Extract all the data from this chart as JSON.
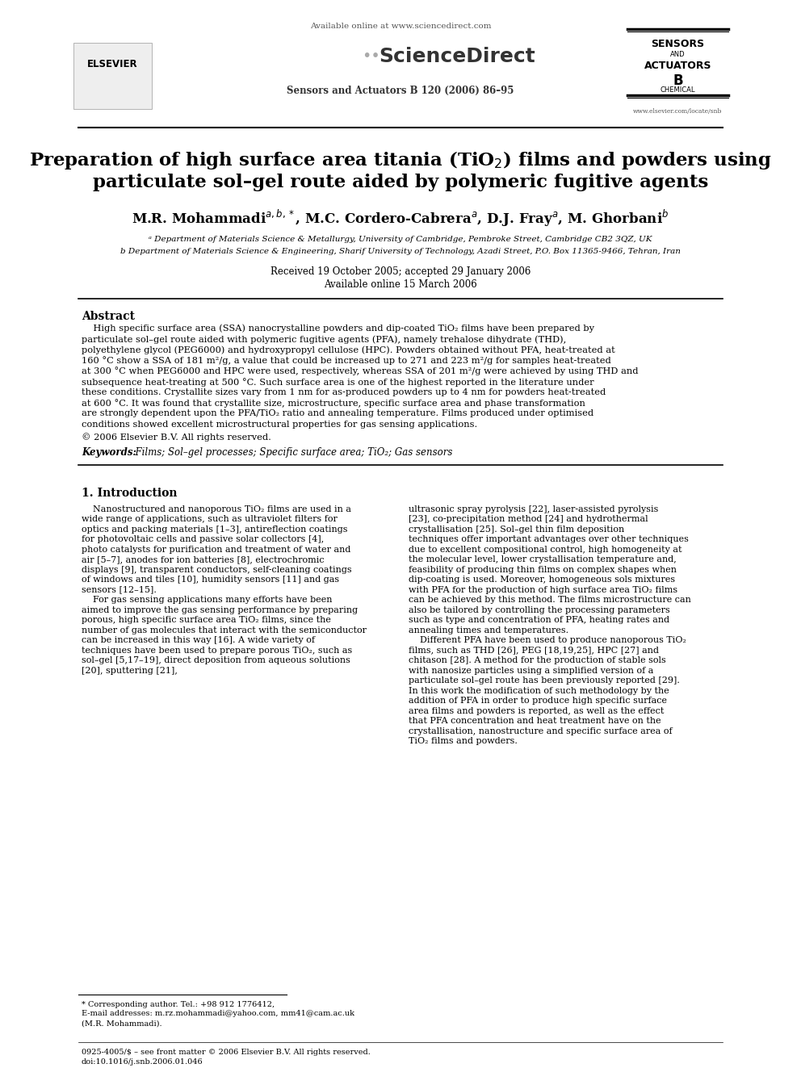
{
  "page_bg": "#ffffff",
  "header_available_online": "Available online at www.sciencedirect.com",
  "journal_info": "Sensors and Actuators B 120 (2006) 86–95",
  "title_line1": "Preparation of high surface area titania (TiO$_2$) films and powders using",
  "title_line2": "particulate sol–gel route aided by polymeric fugitive agents",
  "authors_line": "M.R. Mohammadi$^{a,b,*}$, M.C. Cordero-Cabrera$^{a}$, D.J. Fray$^{a}$, M. Ghorbani$^{b}$",
  "affil_a": "ᵃ Department of Materials Science & Metallurgy, University of Cambridge, Pembroke Street, Cambridge CB2 3QZ, UK",
  "affil_b": "b Department of Materials Science & Engineering, Sharif University of Technology, Azadi Street, P.O. Box 11365-9466, Tehran, Iran",
  "received": "Received 19 October 2005; accepted 29 January 2006",
  "available": "Available online 15 March 2006",
  "abstract_title": "Abstract",
  "abstract_text": "    High specific surface area (SSA) nanocrystalline powders and dip-coated TiO₂ films have been prepared by particulate sol–gel route aided with polymeric fugitive agents (PFA), namely trehalose dihydrate (THD), polyethylene glycol (PEG6000) and hydroxypropyl cellulose (HPC). Powders obtained without PFA, heat-treated at 160 °C show a SSA of 181 m²/g, a value that could be increased up to 271 and 223 m²/g for samples heat-treated at 300 °C when PEG6000 and HPC were used, respectively, whereas SSA of 201 m²/g were achieved by using THD and subsequence heat-treating at 500 °C. Such surface area is one of the highest reported in the literature under these conditions. Crystallite sizes vary from 1 nm for as-produced powders up to 4 nm for powders heat-treated at 600 °C. It was found that crystallite size, microstructure, specific surface area and phase transformation are strongly dependent upon the PFA/TiO₂ ratio and annealing temperature. Films produced under optimised conditions showed excellent microstructural properties for gas sensing applications.",
  "copyright": "© 2006 Elsevier B.V. All rights reserved.",
  "keywords_label": "Keywords:",
  "keywords": "  Films; Sol–gel processes; Specific surface area; TiO₂; Gas sensors",
  "section1_title": "1. Introduction",
  "intro_col1": "    Nanostructured and nanoporous TiO₂ films are used in a wide range of applications, such as ultraviolet filters for optics and packing materials [1–3], antireflection coatings for photovoltaic cells and passive solar collectors [4], photo catalysts for purification and treatment of water and air [5–7], anodes for ion batteries [8], electrochromic displays [9], transparent conductors, self-cleaning coatings of windows and tiles [10], humidity sensors [11] and gas sensors [12–15].\n    For gas sensing applications many efforts have been aimed to improve the gas sensing performance by preparing porous, high specific surface area TiO₂ films, since the number of gas molecules that interact with the semiconductor can be increased in this way [16]. A wide variety of techniques have been used to prepare porous TiO₂, such as sol–gel [5,17–19], direct deposition from aqueous solutions [20], sputtering [21],",
  "intro_col2": "ultrasonic spray pyrolysis [22], laser-assisted pyrolysis [23], co-precipitation method [24] and hydrothermal crystallisation [25]. Sol–gel thin film deposition techniques offer important advantages over other techniques due to excellent compositional control, high homogeneity at the molecular level, lower crystallisation temperature and, feasibility of producing thin films on complex shapes when dip-coating is used. Moreover, homogeneous sols mixtures with PFA for the production of high surface area TiO₂ films can be achieved by this method. The films microstructure can also be tailored by controlling the processing parameters such as type and concentration of PFA, heating rates and annealing times and temperatures.\n    Different PFA have been used to produce nanoporous TiO₂ films, such as THD [26], PEG [18,19,25], HPC [27] and chitason [28]. A method for the production of stable sols with nanosize particles using a simplified version of a particulate sol–gel route has been previously reported [29]. In this work the modification of such methodology by the addition of PFA in order to produce high specific surface area films and powders is reported, as well as the effect that PFA concentration and heat treatment have on the crystallisation, nanostructure and specific surface area of TiO₂ films and powders.",
  "footnote_corresponding": "* Corresponding author. Tel.: +98 912 1776412,",
  "footnote_email": "E-mail addresses: m.rz.mohammadi@yahoo.com, mm41@cam.ac.uk",
  "footnote_name": "(M.R. Mohammadi).",
  "footer_issn": "0925-4005/$ – see front matter © 2006 Elsevier B.V. All rights reserved.",
  "footer_doi": "doi:10.1016/j.snb.2006.01.046"
}
